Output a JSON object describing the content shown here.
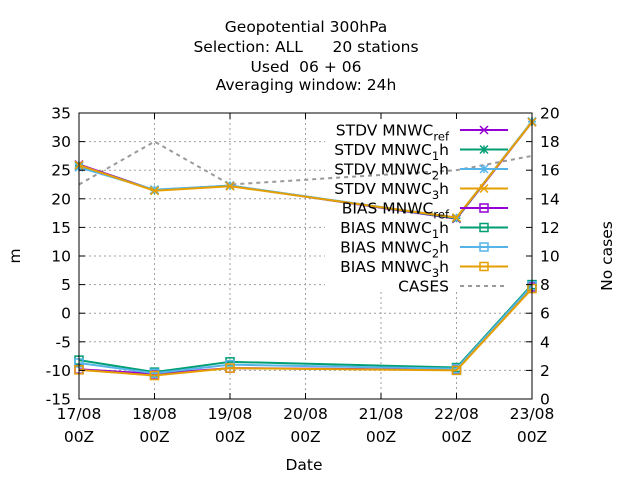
{
  "chart_data": {
    "type": "line",
    "title_lines": [
      "Geopotential 300hPa",
      "Selection: ALL      20 stations",
      "Used  06 + 06",
      "Averaging window: 24h"
    ],
    "xlabel": "Date",
    "ylabel": "m",
    "y2label": "No cases",
    "categories": [
      [
        "17/08",
        "00Z"
      ],
      [
        "18/08",
        "00Z"
      ],
      [
        "19/08",
        "00Z"
      ],
      [
        "20/08",
        "00Z"
      ],
      [
        "21/08",
        "00Z"
      ],
      [
        "22/08",
        "00Z"
      ],
      [
        "23/08",
        "00Z"
      ]
    ],
    "ylim": [
      -15,
      35
    ],
    "yticks": [
      -15,
      -10,
      -5,
      0,
      5,
      10,
      15,
      20,
      25,
      30,
      35
    ],
    "y2lim": [
      0,
      20
    ],
    "y2ticks": [
      0,
      2,
      4,
      6,
      8,
      10,
      12,
      14,
      16,
      18,
      20
    ],
    "grid": true,
    "legend_position": "top-right",
    "series": [
      {
        "name": "STDV MNWC",
        "sub": "ref",
        "marker": "x",
        "color": "#9400d3",
        "axis": "y",
        "x": [
          0,
          1,
          2,
          5,
          6
        ],
        "values": [
          26.0,
          21.5,
          22.3,
          16.5,
          33.4
        ]
      },
      {
        "name": "STDV MNWC",
        "sub": "1",
        "suffix": "h",
        "marker": "star",
        "color": "#009e73",
        "axis": "y",
        "x": [
          0,
          1,
          2,
          5,
          6
        ],
        "values": [
          25.8,
          21.5,
          22.3,
          16.6,
          33.5
        ]
      },
      {
        "name": "STDV MNWC",
        "sub": "2",
        "suffix": "h",
        "marker": "star",
        "color": "#56b4e9",
        "axis": "y",
        "x": [
          0,
          1,
          2,
          5,
          6
        ],
        "values": [
          25.5,
          21.6,
          22.3,
          16.7,
          33.5
        ]
      },
      {
        "name": "STDV MNWC",
        "sub": "3",
        "suffix": "h",
        "marker": "x",
        "color": "#e69f00",
        "axis": "y",
        "x": [
          0,
          1,
          2,
          5,
          6
        ],
        "values": [
          25.9,
          21.4,
          22.2,
          16.7,
          33.4
        ]
      },
      {
        "name": "BIAS MNWC",
        "sub": "ref",
        "marker": "square",
        "color": "#9400d3",
        "axis": "y",
        "x": [
          0,
          1,
          2,
          5,
          6
        ],
        "values": [
          -9.8,
          -10.6,
          -9.6,
          -9.9,
          4.6
        ]
      },
      {
        "name": "BIAS MNWC",
        "sub": "1",
        "suffix": "h",
        "marker": "square",
        "color": "#009e73",
        "axis": "y",
        "x": [
          0,
          1,
          2,
          5,
          6
        ],
        "values": [
          -8.2,
          -10.3,
          -8.5,
          -9.5,
          5.0
        ]
      },
      {
        "name": "BIAS MNWC",
        "sub": "2",
        "suffix": "h",
        "marker": "square",
        "color": "#56b4e9",
        "axis": "y",
        "x": [
          0,
          1,
          2,
          5,
          6
        ],
        "values": [
          -8.7,
          -10.5,
          -9.0,
          -9.7,
          4.8
        ]
      },
      {
        "name": "BIAS MNWC",
        "sub": "3",
        "suffix": "h",
        "marker": "square",
        "color": "#e69f00",
        "axis": "y",
        "x": [
          0,
          1,
          2,
          5,
          6
        ],
        "values": [
          -9.9,
          -10.9,
          -9.6,
          -10.0,
          4.3
        ]
      },
      {
        "name": "CASES",
        "marker": "none",
        "dash": true,
        "color": "#999999",
        "axis": "y2",
        "x": [
          0,
          1,
          2,
          5,
          6
        ],
        "values": [
          15,
          18,
          15,
          16,
          17
        ]
      }
    ]
  }
}
